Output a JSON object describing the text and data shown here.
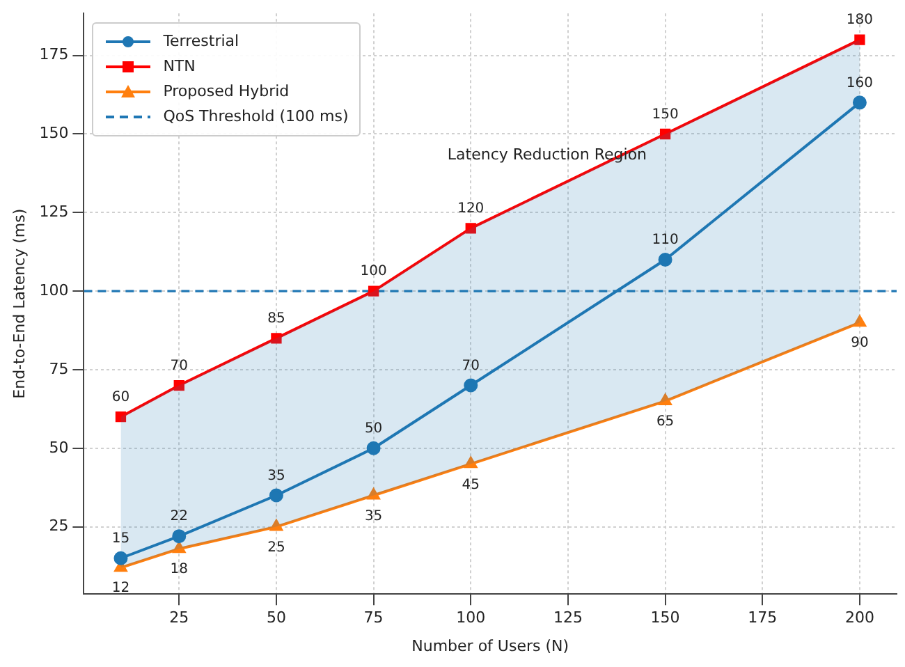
{
  "chart_data": {
    "type": "line",
    "xlabel": "Number of Users (N)",
    "ylabel": "End-to-End Latency (ms)",
    "x": [
      10,
      25,
      50,
      75,
      100,
      150,
      200
    ],
    "series": [
      {
        "name": "Terrestrial",
        "color": "#1f77b4",
        "marker": "circle",
        "values": [
          15,
          22,
          35,
          50,
          70,
          110,
          160
        ],
        "lower": [
          12,
          18,
          25,
          35,
          45,
          65,
          90
        ],
        "upper": [
          60,
          70,
          85,
          100,
          120,
          150,
          180
        ]
      },
      {
        "name": "NTN",
        "color": "#ff0000",
        "marker": "square",
        "values": [
          60,
          70,
          85,
          100,
          120,
          150,
          180
        ]
      },
      {
        "name": "Proposed Hybrid",
        "color": "#ff7f0e",
        "marker": "triangle",
        "values": [
          12,
          18,
          25,
          35,
          45,
          65,
          90
        ]
      }
    ],
    "ref_lines": [
      {
        "axis": "y",
        "value": 100,
        "label": "QoS Threshold (100 ms)",
        "color": "#1f77b4",
        "line_style": "dashed"
      }
    ],
    "annotations": [
      "Latency Reduction Region"
    ],
    "xlim": [
      0.5,
      209.5
    ],
    "ylim": [
      3.6,
      188.4
    ],
    "xticks": [
      25,
      50,
      75,
      100,
      125,
      150,
      175,
      200
    ],
    "yticks": [
      25,
      50,
      75,
      100,
      125,
      150,
      175
    ],
    "grid": true,
    "legend": "top left",
    "data_labels": true,
    "line_style": "solid"
  }
}
